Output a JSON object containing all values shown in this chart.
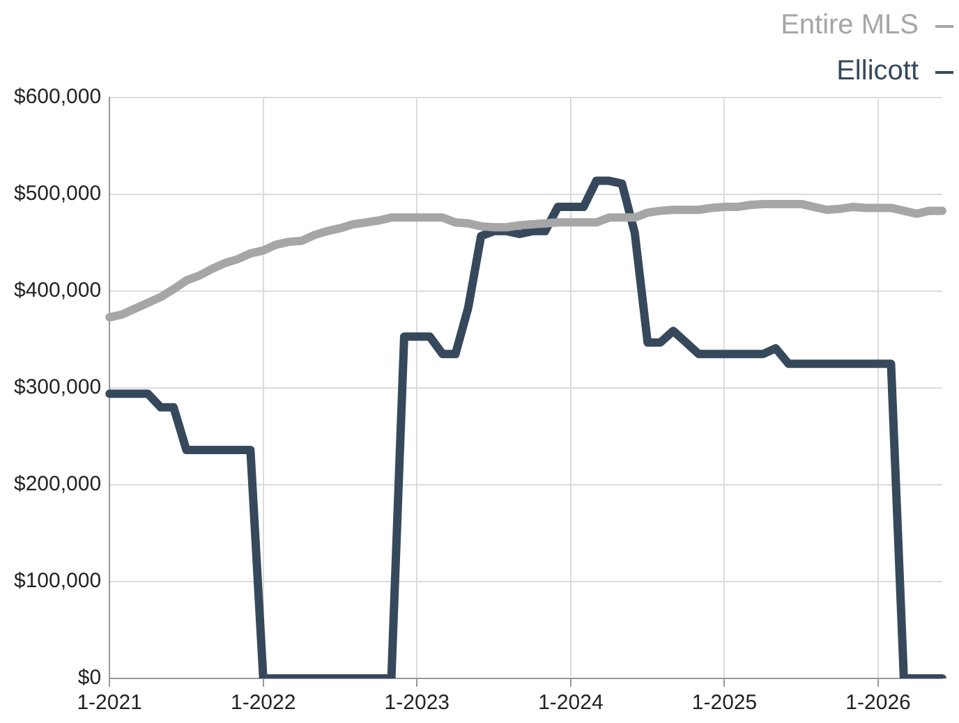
{
  "chart_data": {
    "type": "line",
    "categories": [
      "1-2021",
      null,
      null,
      null,
      null,
      null,
      null,
      null,
      null,
      null,
      null,
      null,
      "1-2022",
      null,
      null,
      null,
      null,
      null,
      null,
      null,
      null,
      null,
      null,
      null,
      "1-2023",
      null,
      null,
      null,
      null,
      null,
      null,
      null,
      null,
      null,
      null,
      null,
      "1-2024",
      null,
      null,
      null,
      null,
      null,
      null,
      null,
      null,
      null,
      null,
      null,
      "1-2025",
      null,
      null,
      null,
      null,
      null,
      null,
      null,
      null,
      null,
      null,
      null,
      "1-2026",
      null,
      null,
      null,
      null,
      null
    ],
    "series": [
      {
        "name": "Entire MLS",
        "color": "#a6a6a6",
        "values": [
          373000,
          376000,
          382000,
          388000,
          394000,
          402000,
          411000,
          416000,
          423000,
          429000,
          433000,
          439000,
          442000,
          448000,
          451000,
          452000,
          458000,
          462000,
          465000,
          469000,
          471000,
          473000,
          476000,
          476000,
          476000,
          476000,
          476000,
          471000,
          470000,
          467000,
          466000,
          466000,
          468000,
          469000,
          470000,
          471000,
          471000,
          471000,
          471000,
          476000,
          476000,
          476000,
          481000,
          483000,
          484000,
          484000,
          484000,
          486000,
          487000,
          487000,
          489000,
          490000,
          490000,
          490000,
          490000,
          487000,
          484000,
          485000,
          487000,
          486000,
          486000,
          486000,
          483000,
          480000,
          483000,
          483000
        ]
      },
      {
        "name": "Ellicott",
        "color": "#36485c",
        "values": [
          294000,
          294000,
          294000,
          294000,
          280000,
          280000,
          236000,
          236000,
          236000,
          236000,
          236000,
          236000,
          0,
          0,
          0,
          0,
          0,
          0,
          0,
          0,
          0,
          0,
          0,
          353000,
          353000,
          353000,
          335000,
          335000,
          383000,
          457000,
          462000,
          462000,
          459000,
          462000,
          462000,
          487000,
          487000,
          487000,
          514000,
          514000,
          511000,
          460000,
          347000,
          347000,
          359000,
          347000,
          335000,
          335000,
          335000,
          335000,
          335000,
          335000,
          341000,
          325000,
          325000,
          325000,
          325000,
          325000,
          325000,
          325000,
          325000,
          325000,
          0,
          0,
          0,
          0
        ]
      }
    ],
    "ylim": [
      0,
      600000
    ],
    "yticks": [
      {
        "value": 0,
        "label": "$0"
      },
      {
        "value": 100000,
        "label": "$100,000"
      },
      {
        "value": 200000,
        "label": "$200,000"
      },
      {
        "value": 300000,
        "label": "$300,000"
      },
      {
        "value": 400000,
        "label": "$400,000"
      },
      {
        "value": 500000,
        "label": "$500,000"
      },
      {
        "value": 600000,
        "label": "$600,000"
      }
    ],
    "grid": true,
    "legend": "top right",
    "marker": "none",
    "line_style": "solid"
  }
}
